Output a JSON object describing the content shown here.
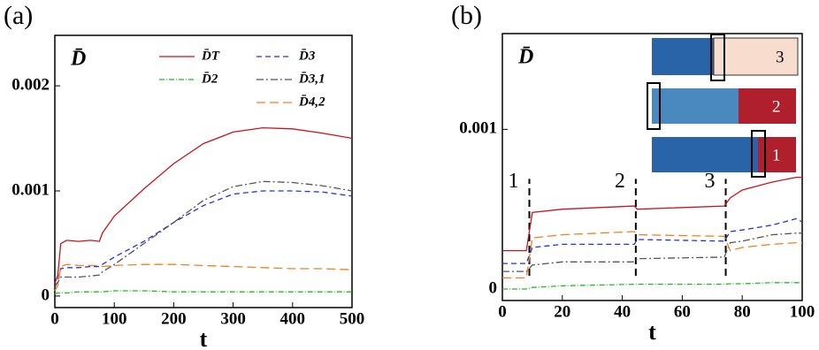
{
  "chart_data": [
    {
      "type": "line",
      "panel_label": "(a)",
      "x_label": "t",
      "y_label": "D̄",
      "xlim": [
        0,
        500
      ],
      "xticks": [
        0,
        100,
        200,
        300,
        400,
        500
      ],
      "ylim": [
        -0.00011,
        0.00248
      ],
      "yticks": [
        0,
        0.001,
        0.002
      ],
      "x": [
        0,
        5,
        10,
        20,
        40,
        60,
        75,
        80,
        100,
        150,
        200,
        250,
        300,
        350,
        400,
        450,
        500
      ],
      "series": [
        {
          "name": "D̄T",
          "color": "#c8141e",
          "dash": "solid",
          "values": [
            0.00012,
            0.0002,
            0.0005,
            0.00053,
            0.00052,
            0.00053,
            0.00052,
            0.0006,
            0.00076,
            0.00102,
            0.00126,
            0.00145,
            0.00156,
            0.0016,
            0.00159,
            0.00155,
            0.0015
          ]
        },
        {
          "name": "D̄2",
          "color": "#22bb22",
          "dash": "dashdot",
          "values": [
            2e-05,
            3e-05,
            3e-05,
            3e-05,
            4e-05,
            4e-05,
            4e-05,
            4e-05,
            5e-05,
            5e-05,
            4e-05,
            4e-05,
            4e-05,
            4e-05,
            4e-05,
            4e-05,
            4e-05
          ]
        },
        {
          "name": "D̄3",
          "color": "#2233dd",
          "dash": "dashed",
          "values": [
            8e-05,
            0.00015,
            0.00026,
            0.00027,
            0.00027,
            0.00028,
            0.00028,
            0.0003,
            0.00037,
            0.00052,
            0.0007,
            0.00086,
            0.00097,
            0.001,
            0.001,
            0.00099,
            0.00095
          ]
        },
        {
          "name": "D̄3,1",
          "color": "#555555",
          "dash": "dashdot2",
          "values": [
            0.0001,
            0.00013,
            0.00018,
            0.00018,
            0.00018,
            0.00019,
            0.0002,
            0.00023,
            0.0003,
            0.0005,
            0.0007,
            0.00091,
            0.00104,
            0.00109,
            0.00108,
            0.00105,
            0.001
          ]
        },
        {
          "name": "D̄4,2",
          "color": "#f08020",
          "dash": "longdash",
          "values": [
            5e-05,
            0.0001,
            0.00028,
            0.0003,
            0.00029,
            0.00029,
            0.00029,
            0.00028,
            0.00029,
            0.0003,
            0.0003,
            0.00029,
            0.00028,
            0.00027,
            0.00026,
            0.00026,
            0.00025
          ]
        }
      ]
    },
    {
      "type": "line",
      "panel_label": "(b)",
      "x_label": "t",
      "y_label": "D̄",
      "xlim": [
        0,
        100
      ],
      "xticks": [
        0,
        20,
        40,
        60,
        80,
        100
      ],
      "ylim": [
        -7.2e-05,
        0.0016
      ],
      "yticks": [
        0,
        0.001
      ],
      "x": [
        0,
        8,
        10,
        20,
        44,
        45,
        74,
        76,
        80,
        90,
        98,
        100
      ],
      "series": [
        {
          "color": "#c8141e",
          "dash": "solid",
          "values": [
            0.00024,
            0.00024,
            0.00048,
            0.0005,
            0.00052,
            0.0005,
            0.00052,
            0.00057,
            0.00062,
            0.00067,
            0.0007,
            0.0007
          ]
        },
        {
          "color": "#22bb22",
          "dash": "dashdot",
          "values": [
            0.0,
            0.0,
            1e-05,
            2e-05,
            3e-05,
            3e-05,
            3e-05,
            3.3e-05,
            3.3e-05,
            4e-05,
            4e-05,
            4e-05
          ]
        },
        {
          "color": "#2233dd",
          "dash": "dashed",
          "values": [
            0.00016,
            0.00016,
            0.00026,
            0.00028,
            0.00028,
            0.00031,
            0.0003,
            0.00036,
            0.00037,
            0.0004,
            0.00044,
            0.00042
          ]
        },
        {
          "color": "#555555",
          "dash": "dashdot2",
          "values": [
            0.00011,
            0.00011,
            0.00015,
            0.00017,
            0.00017,
            0.00019,
            0.0002,
            0.00029,
            0.0003,
            0.00034,
            0.00035,
            0.00035
          ]
        },
        {
          "color": "#f08020",
          "dash": "longdash",
          "values": [
            7e-05,
            7e-05,
            0.00032,
            0.00034,
            0.00036,
            0.00034,
            0.00033,
            0.00024,
            0.00026,
            0.00028,
            0.00029,
            0.00029
          ]
        }
      ],
      "vlines": [
        {
          "x": 9,
          "label": "1"
        },
        {
          "x": 44.5,
          "label": "2"
        },
        {
          "x": 74.5,
          "label": "3"
        }
      ],
      "inset_labels": [
        "3",
        "2",
        "1"
      ]
    }
  ]
}
